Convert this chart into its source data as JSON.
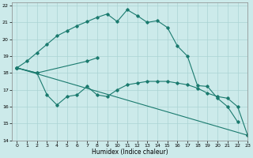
{
  "xlabel": "Humidex (Indice chaleur)",
  "bg_color": "#cceaea",
  "grid_color": "#aad4d4",
  "line_color": "#1a7a6e",
  "xlim": [
    -0.5,
    23
  ],
  "ylim": [
    14,
    22.2
  ],
  "xticks": [
    0,
    1,
    2,
    3,
    4,
    5,
    6,
    7,
    8,
    9,
    10,
    11,
    12,
    13,
    14,
    15,
    16,
    17,
    18,
    19,
    20,
    21,
    22,
    23
  ],
  "yticks": [
    14,
    15,
    16,
    17,
    18,
    19,
    20,
    21,
    22
  ],
  "series1_x": [
    0,
    1,
    2,
    3,
    4,
    5,
    6,
    7,
    8,
    9,
    10,
    11,
    12,
    13,
    14,
    15,
    16,
    17,
    18,
    19,
    20,
    21,
    22
  ],
  "series1_y": [
    18.3,
    18.7,
    19.2,
    19.7,
    20.2,
    20.5,
    20.8,
    21.05,
    21.3,
    21.5,
    21.05,
    21.75,
    21.4,
    21.0,
    21.1,
    20.7,
    19.6,
    19.0,
    17.25,
    17.2,
    16.5,
    16.0,
    15.1
  ],
  "series2_x": [
    0,
    2,
    7,
    8
  ],
  "series2_y": [
    18.3,
    18.0,
    18.7,
    18.9
  ],
  "series3_x": [
    0,
    2,
    3,
    4,
    5,
    6,
    7,
    8,
    9,
    10,
    11,
    12,
    13,
    14,
    15,
    16,
    17,
    18,
    19,
    20,
    21,
    22,
    23
  ],
  "series3_y": [
    18.3,
    18.0,
    16.7,
    16.1,
    16.6,
    16.7,
    17.2,
    16.7,
    16.6,
    17.0,
    17.3,
    17.4,
    17.5,
    17.5,
    17.5,
    17.4,
    17.3,
    17.1,
    16.8,
    16.6,
    16.5,
    16.0,
    14.3
  ],
  "series4_x": [
    0,
    23
  ],
  "series4_y": [
    18.3,
    14.3
  ]
}
